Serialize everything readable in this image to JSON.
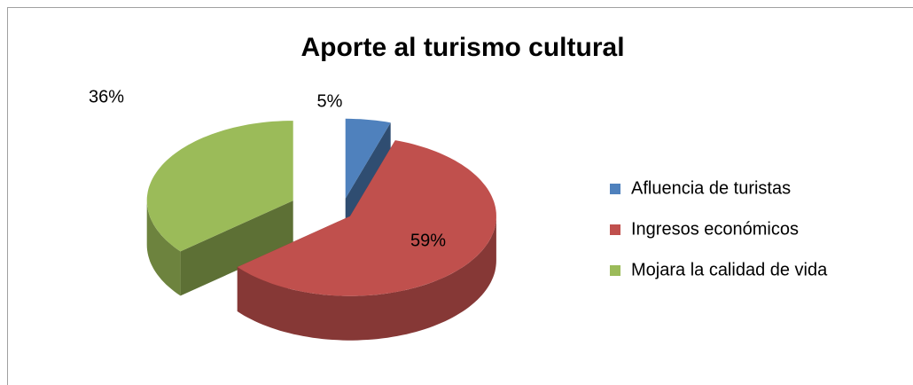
{
  "chart_data": {
    "type": "pie3d",
    "title": "Aporte al turismo cultural",
    "categories": [
      "Afluencia de turistas",
      "Ingresos económicos",
      "Mojara la calidad de vida"
    ],
    "values": [
      5,
      59,
      36
    ],
    "value_labels": [
      "5%",
      "59%",
      "36%"
    ],
    "colors": [
      "#4F81BD",
      "#C0504D",
      "#9BBB59"
    ],
    "legend": "right"
  }
}
